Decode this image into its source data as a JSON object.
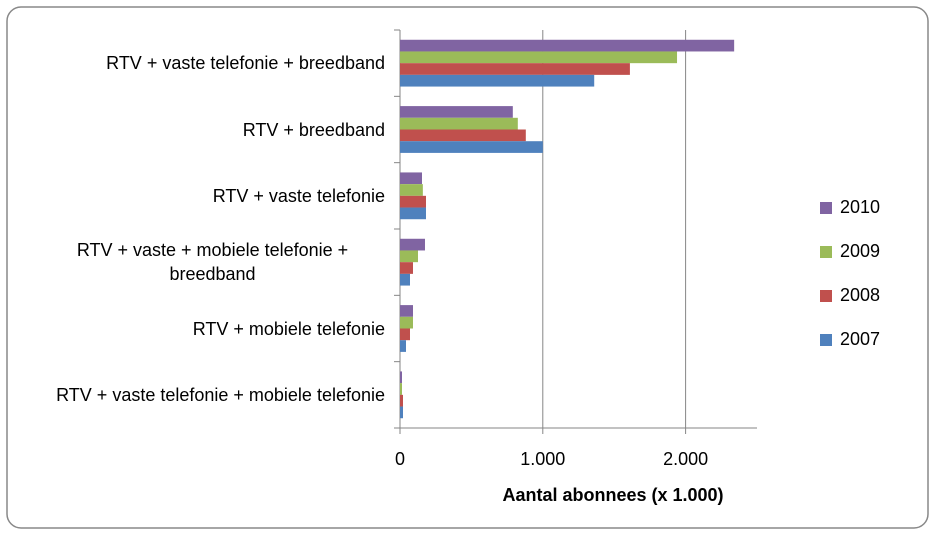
{
  "chart_data": {
    "type": "bar",
    "orientation": "horizontal",
    "x_label": "Aantal abonnees (x 1.000)",
    "categories": [
      "RTV + vaste telefonie + breedband",
      "RTV + breedband",
      "RTV + vaste telefonie",
      "RTV + vaste + mobiele telefonie + breedband",
      "RTV + mobiele telefonie",
      "RTV + vaste telefonie + mobiele telefonie"
    ],
    "series": [
      {
        "name": "2010",
        "color": "#8064a2",
        "values": [
          2340,
          790,
          154,
          175,
          91,
          14
        ]
      },
      {
        "name": "2009",
        "color": "#9bbb59",
        "values": [
          1940,
          825,
          160,
          126,
          91,
          14
        ]
      },
      {
        "name": "2008",
        "color": "#c0504d",
        "values": [
          1610,
          881,
          182,
          91,
          70,
          21
        ]
      },
      {
        "name": "2007",
        "color": "#4f81bd",
        "values": [
          1360,
          1000,
          182,
          70,
          42,
          21
        ]
      }
    ],
    "xlim": [
      0,
      2500
    ],
    "xticks": [
      0,
      {
        "value": 1000,
        "label": "1.000"
      },
      {
        "value": 2000,
        "label": "2.000"
      }
    ],
    "grid": true,
    "legend": "right"
  }
}
